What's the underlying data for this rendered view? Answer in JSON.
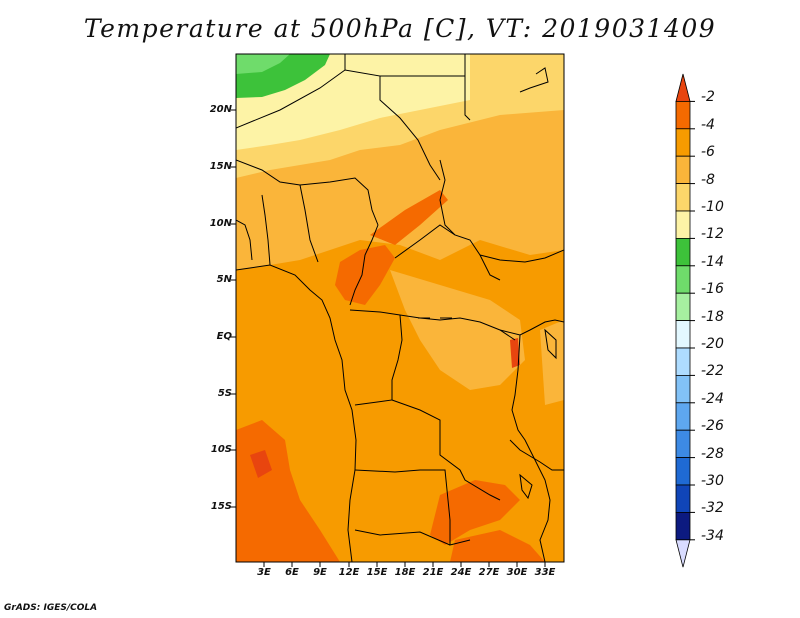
{
  "title": "Temperature at 500hPa [C], VT: 2019031409",
  "credit": "GrADS: IGES/COLA",
  "lat_labels": [
    "20N",
    "15N",
    "10N",
    "5N",
    "EQ",
    "5S",
    "10S",
    "15S"
  ],
  "lon_labels": [
    "3E",
    "6E",
    "9E",
    "12E",
    "15E",
    "18E",
    "21E",
    "24E",
    "27E",
    "30E",
    "33E"
  ],
  "colorbar": {
    "labels": [
      "-2",
      "-4",
      "-6",
      "-8",
      "-10",
      "-12",
      "-14",
      "-16",
      "-18",
      "-20",
      "-22",
      "-24",
      "-26",
      "-28",
      "-30",
      "-32",
      "-34"
    ],
    "colors": [
      "#e8450f",
      "#f56a00",
      "#f79b00",
      "#fab53a",
      "#fcd66a",
      "#fdf3a6",
      "#3dc23a",
      "#6fdc6b",
      "#a6f0a0",
      "#e3f8ff",
      "#aedcff",
      "#82c2f7",
      "#5ea7ef",
      "#3d8ae4",
      "#1f6ad4",
      "#1045b8",
      "#0c1a80",
      "#d9dcff"
    ]
  },
  "chart_data": {
    "type": "heatmap",
    "title": "Temperature at 500hPa [C], VT: 2019031409",
    "variable": "Temperature at 500hPa",
    "units": "C",
    "valid_time": "2019031409",
    "x_range_deg_east": [
      0,
      35
    ],
    "y_range_deg": [
      -20,
      24
    ],
    "levels": [
      -34,
      -32,
      -30,
      -28,
      -26,
      -24,
      -22,
      -20,
      -18,
      -16,
      -14,
      -12,
      -10,
      -8,
      -6,
      -4,
      -2
    ],
    "regions": [
      {
        "name": "far north-west corner",
        "value_range": [
          -14,
          -12
        ]
      },
      {
        "name": "Sahara north of 15N",
        "value_range": [
          -10,
          -8
        ]
      },
      {
        "name": "Sahel 10N-15N",
        "value_range": [
          -8,
          -6
        ]
      },
      {
        "name": "central Africa / Congo basin",
        "value_range": [
          -6,
          -4
        ]
      },
      {
        "name": "Cameroon-CAR band near 5N-8N",
        "value_range": [
          -4,
          -2
        ]
      },
      {
        "name": "Atlantic off Angola 8S-20S",
        "value_range": [
          -4,
          -2
        ]
      },
      {
        "name": "south-east near 15S-20S, 22E-30E",
        "value_range": [
          -4,
          -2
        ]
      }
    ]
  }
}
